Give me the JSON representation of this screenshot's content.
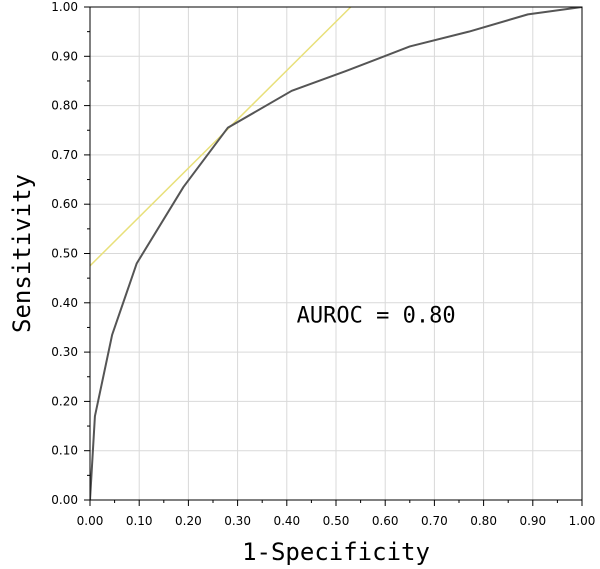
{
  "chart_data": {
    "type": "line",
    "title": "",
    "xlabel": "1-Specificity",
    "ylabel": "Sensitivity",
    "xlim": [
      0,
      1
    ],
    "ylim": [
      0,
      1
    ],
    "x_ticks": [
      "0.00",
      "0.10",
      "0.20",
      "0.30",
      "0.40",
      "0.50",
      "0.60",
      "0.70",
      "0.80",
      "0.90",
      "1.00"
    ],
    "y_ticks": [
      "0.00",
      "0.10",
      "0.20",
      "0.30",
      "0.40",
      "0.50",
      "0.60",
      "0.70",
      "0.80",
      "0.90",
      "1.00"
    ],
    "grid": true,
    "series": [
      {
        "x": [
          0.0,
          0.01,
          0.045,
          0.095,
          0.19,
          0.28,
          0.41,
          0.52,
          0.65,
          0.77,
          0.89,
          1.0
        ],
        "y": [
          0.0,
          0.17,
          0.335,
          0.48,
          0.635,
          0.755,
          0.83,
          0.87,
          0.92,
          0.95,
          0.985,
          1.0
        ],
        "color": "#555555"
      },
      {
        "x": [
          0.0,
          0.53
        ],
        "y": [
          0.475,
          1.0
        ],
        "color": "#e8e07a"
      }
    ],
    "annotations": [
      {
        "text": "AUROC = 0.80",
        "x": 0.42,
        "y": 0.36
      }
    ]
  }
}
